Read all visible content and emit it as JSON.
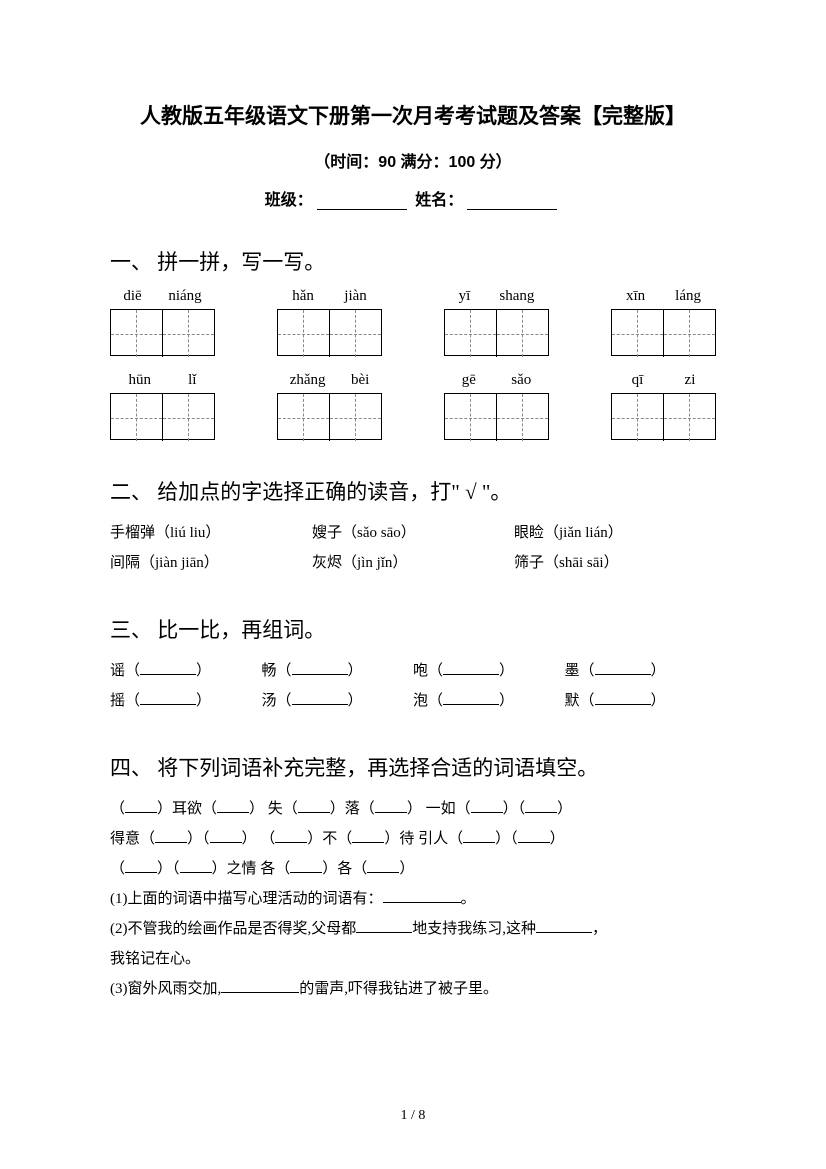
{
  "title": "人教版五年级语文下册第一次月考考试题及答案【完整版】",
  "subtitle": "（时间：90   满分：100 分）",
  "form": {
    "class_label": "班级：",
    "name_label": "姓名："
  },
  "section1": {
    "heading": "一、 拼一拼，写一写。",
    "pinyin_row1": [
      {
        "p1": "diē",
        "p2": "niáng"
      },
      {
        "p1": "hǎn",
        "p2": "jiàn"
      },
      {
        "p1": "yī",
        "p2": "shang"
      },
      {
        "p1": "xīn",
        "p2": "láng"
      }
    ],
    "pinyin_row2": [
      {
        "p1": "hūn",
        "p2": "lǐ"
      },
      {
        "p1": "zhǎng",
        "p2": "bèi"
      },
      {
        "p1": "gē",
        "p2": "sǎo"
      },
      {
        "p1": "qī",
        "p2": "zi"
      }
    ]
  },
  "section2": {
    "heading": "二、 给加点的字选择正确的读音，打\" √ \"。",
    "row1": [
      "手榴弹（liú liu）",
      "嫂子（sǎo sāo）",
      "眼睑（jiǎn   lián）"
    ],
    "row2": [
      "间隔（jiàn jiān）",
      "灰烬（jìn   jǐn）",
      "筛子（shāi sāi）"
    ]
  },
  "section3": {
    "heading": "三、 比一比，再组词。",
    "row1": [
      "谣（",
      "畅（",
      "咆（",
      "墨（"
    ],
    "row2": [
      "摇（",
      "汤（",
      "泡（",
      "默（"
    ]
  },
  "section4": {
    "heading": "四、 将下列词语补充完整，再选择合适的词语填空。",
    "l1a": "（",
    "l1b": "）耳欲（",
    "l1c": "）   失（",
    "l1d": "）落（",
    "l1e": "）     一如（",
    "l1f": "）（",
    "l1g": "）",
    "l2a": "得意（",
    "l2b": "）（",
    "l2c": "）   （",
    "l2d": "）不（",
    "l2e": "）待     引人（",
    "l2f": "）（",
    "l2g": "）",
    "l3a": "（",
    "l3b": "）（",
    "l3c": "）之情   各（",
    "l3d": "）各（",
    "l3e": "）",
    "l4": "(1)上面的词语中描写心理活动的词语有：",
    "l4end": "。",
    "l5a": "(2)不管我的绘画作品是否得奖,父母都",
    "l5b": "地支持我练习,这种",
    "l5c": "，",
    "l6": "我铭记在心。",
    "l7a": "(3)窗外风雨交加,",
    "l7b": "的雷声,吓得我钻进了被子里。"
  },
  "page_num": "1 / 8"
}
